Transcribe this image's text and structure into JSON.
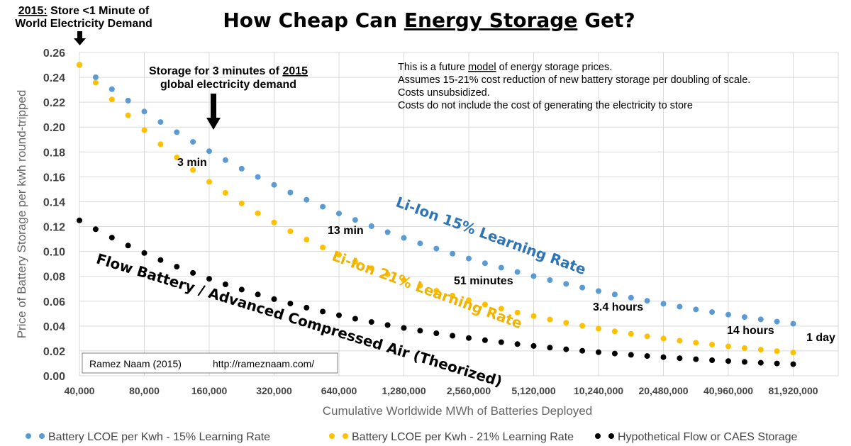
{
  "chart_data": {
    "type": "scatter",
    "title": "How Cheap Can Energy Storage Get?",
    "title_underlined": "Energy Storage",
    "xlabel": "Cumulative Worldwide MWh of Batteries Deployed",
    "ylabel": "Price of Battery Storage per kwh round-tripped",
    "x_scale": "log2",
    "xlim": [
      40000,
      92000000
    ],
    "ylim": [
      0,
      0.26
    ],
    "y_ticks": [
      "0.00",
      "0.02",
      "0.04",
      "0.06",
      "0.08",
      "0.10",
      "0.12",
      "0.14",
      "0.16",
      "0.18",
      "0.20",
      "0.22",
      "0.24",
      "0.26"
    ],
    "x_ticks": [
      {
        "value": 40000,
        "label": "40,000"
      },
      {
        "value": 80000,
        "label": "80,000"
      },
      {
        "value": 160000,
        "label": "160,000"
      },
      {
        "value": 320000,
        "label": "320,000"
      },
      {
        "value": 640000,
        "label": "640,000"
      },
      {
        "value": 1280000,
        "label": "1,280,000"
      },
      {
        "value": 2560000,
        "label": "2,560,000"
      },
      {
        "value": 5120000,
        "label": "5,120,000"
      },
      {
        "value": 10240000,
        "label": "10,240,000"
      },
      {
        "value": 20480000,
        "label": "20,480,000"
      },
      {
        "value": 40960000,
        "label": "40,960,000"
      },
      {
        "value": 81920000,
        "label": "81,920,000"
      }
    ],
    "grid": true,
    "legend_position": "bottom",
    "series": [
      {
        "name": "Battery LCOE per Kwh - 15% Learning Rate",
        "color": "#5b9bd5",
        "start_x": 40000,
        "start_y": 0.25,
        "ratio_per_doubling": 0.85,
        "end_x": 92000000
      },
      {
        "name": "Battery LCOE per Kwh - 21% Learning Rate",
        "color": "#ffc000",
        "start_x": 40000,
        "start_y": 0.25,
        "ratio_per_doubling": 0.79,
        "end_x": 92000000
      },
      {
        "name": "Hypothetical Flow or CAES Storage",
        "color": "#000000",
        "start_x": 40000,
        "start_y": 0.125,
        "ratio_per_doubling": 0.79,
        "end_x": 92000000
      }
    ],
    "series_labels": [
      {
        "text": "Li-Ion 15% Learning Rate",
        "color": "#2e75b6"
      },
      {
        "text": "Li-Ion 21% Learning Rate",
        "color": "#f0b400"
      },
      {
        "text": "Flow Battery / Advanced Compressed Air (Theorized)",
        "color": "#000000"
      }
    ],
    "annotations": {
      "top_left_note_prefix": "2015:",
      "top_left_note_rest": "Store <1 Minute of",
      "top_left_note_line2": "World Electricity Demand",
      "storage_note_prefix": "Storage for 3 minutes of ",
      "storage_note_year": "2015",
      "storage_note_line2": "global electricity demand",
      "durations": [
        "3 min",
        "13 min",
        "51 minutes",
        "3.4 hours",
        "14 hours",
        "1 day"
      ]
    },
    "model_note": {
      "line1_prefix": "This is a future ",
      "line1_underlined": "model",
      "line1_suffix": " of energy storage prices.",
      "line2": "Assumes 15-21% cost reduction of new battery storage per doubling of scale.",
      "line3": "Costs unsubsidized.",
      "line4": "Costs do not include the cost of generating the electricity to store"
    },
    "credit": {
      "author": "Ramez Naam (2015)",
      "url": "http://rameznaam.com/"
    }
  }
}
